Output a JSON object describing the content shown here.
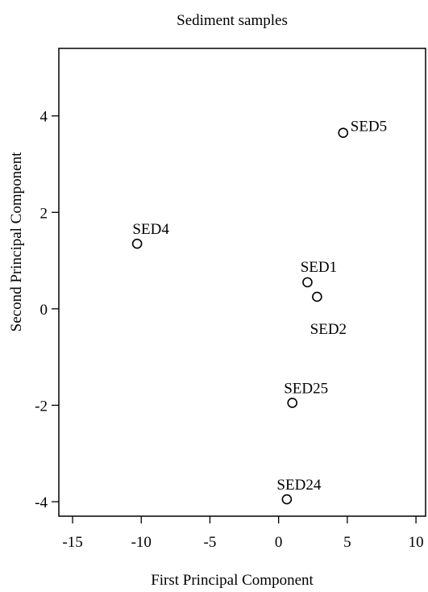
{
  "chart_data": {
    "type": "scatter",
    "title": "Sediment samples",
    "xlabel": "First Principal Component",
    "ylabel": "Second Principal Component",
    "xlim": [
      -16,
      10.7
    ],
    "ylim": [
      -4.3,
      5.4
    ],
    "xticks": [
      -15,
      -10,
      -5,
      0,
      5,
      10
    ],
    "yticks": [
      4,
      2,
      0,
      -2,
      -4
    ],
    "grid": false,
    "points": [
      {
        "label": "SED5",
        "x": 4.7,
        "y": 3.65
      },
      {
        "label": "SED4",
        "x": -10.3,
        "y": 1.35
      },
      {
        "label": "SED1",
        "x": 2.1,
        "y": 0.55
      },
      {
        "label": "SED2",
        "x": 2.8,
        "y": 0.25
      },
      {
        "label": "SED25",
        "x": 1.0,
        "y": -1.95
      },
      {
        "label": "SED24",
        "x": 0.6,
        "y": -3.95
      }
    ]
  }
}
